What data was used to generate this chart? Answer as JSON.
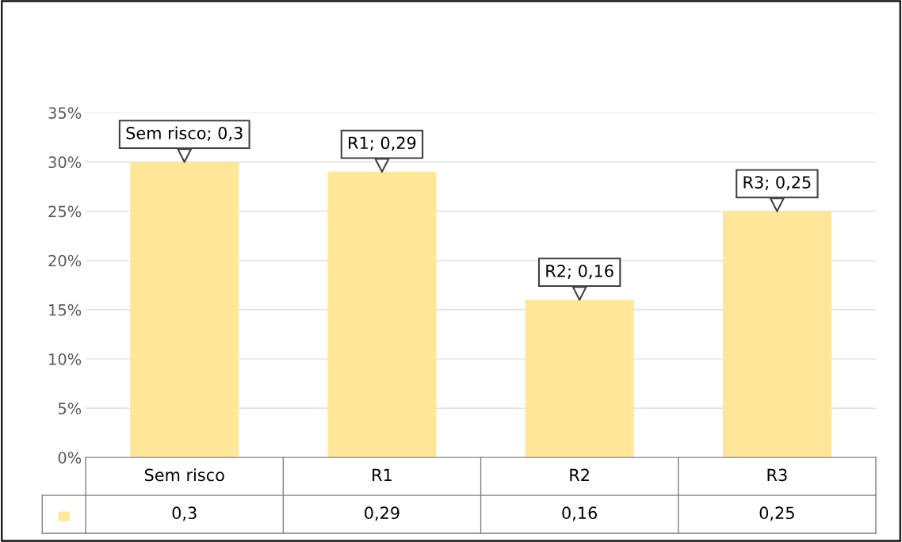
{
  "chart_data": {
    "type": "bar",
    "categories": [
      "Sem risco",
      "R1",
      "R2",
      "R3"
    ],
    "values": [
      0.3,
      0.29,
      0.16,
      0.25
    ],
    "color": "#ffe699",
    "value_labels": [
      "Sem risco; 0,3",
      "R1; 0,29",
      "R2; 0,16",
      "R3; 0,25"
    ],
    "annotations": [
      "0,3",
      "0,29",
      "0,16",
      "0,25"
    ],
    "ylim": [
      0,
      0.35
    ],
    "yticks": [
      {
        "value": 0,
        "label": "0%"
      },
      {
        "value": 0.05,
        "label": "5%"
      },
      {
        "value": 0.1,
        "label": "10%"
      },
      {
        "value": 0.15,
        "label": "15%"
      },
      {
        "value": 0.2,
        "label": "20%"
      },
      {
        "value": 0.25,
        "label": "25%"
      },
      {
        "value": 0.3,
        "label": "30%"
      },
      {
        "value": 0.35,
        "label": "35%"
      }
    ],
    "grid": "y",
    "legend": false
  }
}
